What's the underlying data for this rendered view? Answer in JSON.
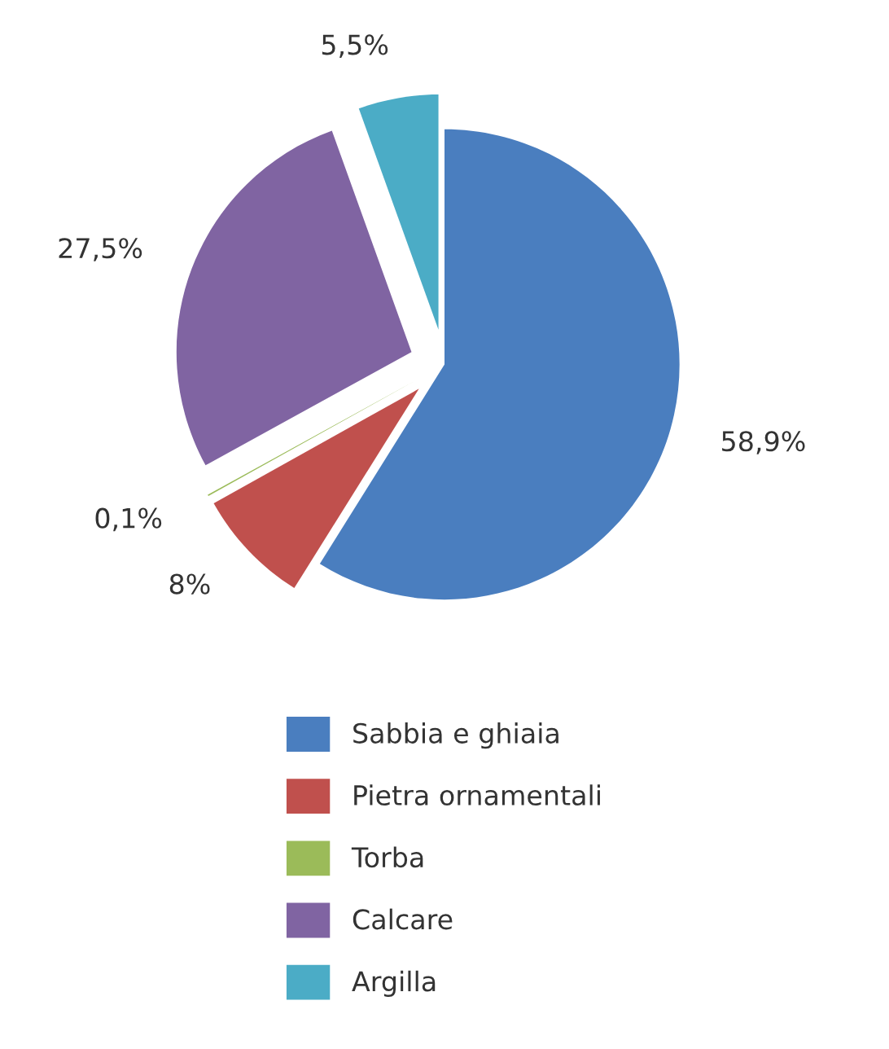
{
  "chart_data": {
    "type": "pie",
    "categories": [
      "Sabbia e ghiaia",
      "Pietra ornamentali",
      "Torba",
      "Calcare",
      "Argilla"
    ],
    "values": [
      58.9,
      8,
      0.1,
      27.5,
      5.5
    ],
    "value_labels": [
      "58,9%",
      "8%",
      "0,1%",
      "27,5%",
      "5,5%"
    ],
    "colors": [
      "#4a7ebf",
      "#c0504d",
      "#9bbb59",
      "#8064a2",
      "#4bacc6"
    ],
    "legend": "bottom"
  }
}
